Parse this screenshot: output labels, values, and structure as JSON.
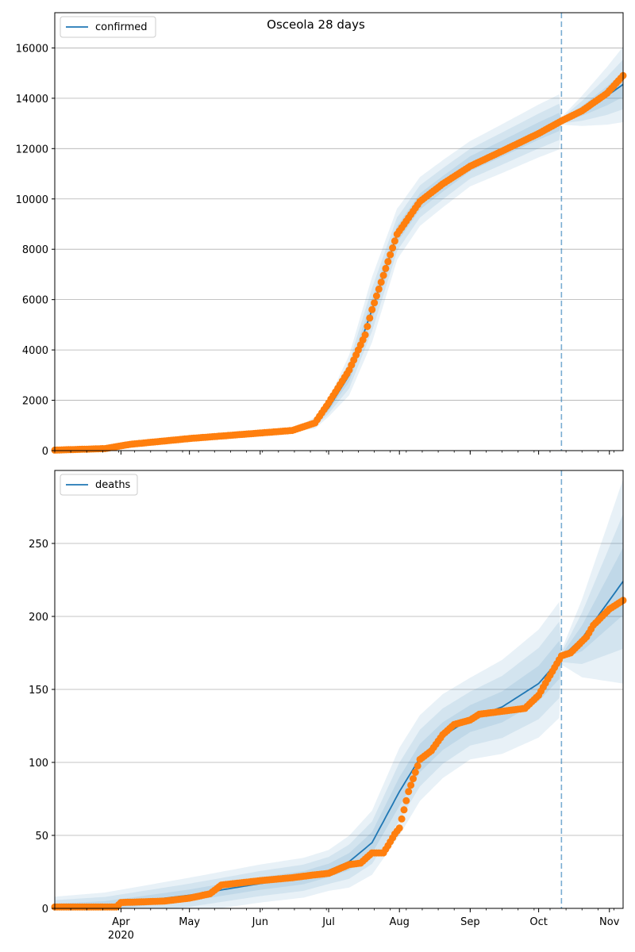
{
  "chart_data": [
    {
      "type": "line",
      "title": "Osceola 28 days",
      "xlabel": "",
      "ylabel": "",
      "legend": {
        "placement": "top-left",
        "entries": [
          "confirmed"
        ]
      },
      "series_name": "confirmed",
      "x_range": [
        "2020-03-03",
        "2020-11-07"
      ],
      "ylim": [
        0,
        17400
      ],
      "yticks": [
        0,
        2000,
        4000,
        6000,
        8000,
        10000,
        12000,
        14000,
        16000
      ],
      "grid": "horizontal",
      "forecast_start": "2020-10-11",
      "model_knots": [
        [
          "2020-03-03",
          20
        ],
        [
          "2020-03-20",
          80
        ],
        [
          "2020-04-05",
          300
        ],
        [
          "2020-05-01",
          500
        ],
        [
          "2020-06-01",
          700
        ],
        [
          "2020-06-15",
          800
        ],
        [
          "2020-06-25",
          1100
        ],
        [
          "2020-07-01",
          1700
        ],
        [
          "2020-07-10",
          3000
        ],
        [
          "2020-07-20",
          5600
        ],
        [
          "2020-07-31",
          8600
        ],
        [
          "2020-08-10",
          9900
        ],
        [
          "2020-08-20",
          10600
        ],
        [
          "2020-09-01",
          11400
        ],
        [
          "2020-09-15",
          12000
        ],
        [
          "2020-10-01",
          12700
        ],
        [
          "2020-10-11",
          13100
        ],
        [
          "2020-10-20",
          13500
        ],
        [
          "2020-10-31",
          14100
        ],
        [
          "2020-11-07",
          14550
        ]
      ],
      "observed_knots": [
        [
          "2020-03-03",
          20
        ],
        [
          "2020-03-25",
          80
        ],
        [
          "2020-04-05",
          250
        ],
        [
          "2020-05-01",
          480
        ],
        [
          "2020-06-01",
          700
        ],
        [
          "2020-06-15",
          800
        ],
        [
          "2020-06-25",
          1100
        ],
        [
          "2020-07-01",
          1900
        ],
        [
          "2020-07-10",
          3200
        ],
        [
          "2020-07-17",
          4600
        ],
        [
          "2020-07-20",
          5600
        ],
        [
          "2020-07-31",
          8600
        ],
        [
          "2020-08-10",
          9900
        ],
        [
          "2020-08-20",
          10600
        ],
        [
          "2020-09-01",
          11300
        ],
        [
          "2020-09-15",
          11900
        ],
        [
          "2020-10-01",
          12600
        ],
        [
          "2020-10-11",
          13100
        ],
        [
          "2020-10-20",
          13500
        ],
        [
          "2020-10-31",
          14200
        ],
        [
          "2020-11-07",
          14900
        ]
      ],
      "band_widths": [
        [
          "2020-03-03",
          0
        ],
        [
          "2020-06-15",
          30
        ],
        [
          "2020-07-01",
          350
        ],
        [
          "2020-07-20",
          1300
        ],
        [
          "2020-08-01",
          1000
        ],
        [
          "2020-09-01",
          900
        ],
        [
          "2020-10-11",
          1100
        ],
        [
          "2020-10-11",
          150
        ],
        [
          "2020-11-07",
          1500
        ]
      ]
    },
    {
      "type": "line",
      "title": "",
      "xlabel": "",
      "ylabel": "",
      "legend": {
        "placement": "top-left",
        "entries": [
          "deaths"
        ]
      },
      "series_name": "deaths",
      "x_range": [
        "2020-03-03",
        "2020-11-07"
      ],
      "ylim": [
        0,
        300
      ],
      "yticks": [
        0,
        50,
        100,
        150,
        200,
        250
      ],
      "grid": "horizontal",
      "forecast_start": "2020-10-11",
      "xtick_labels": [
        {
          "date": "2020-04-01",
          "label": "Apr",
          "sub": "2020"
        },
        {
          "date": "2020-05-01",
          "label": "May"
        },
        {
          "date": "2020-06-01",
          "label": "Jun"
        },
        {
          "date": "2020-07-01",
          "label": "Jul"
        },
        {
          "date": "2020-08-01",
          "label": "Aug"
        },
        {
          "date": "2020-09-01",
          "label": "Sep"
        },
        {
          "date": "2020-10-01",
          "label": "Oct"
        },
        {
          "date": "2020-11-01",
          "label": "Nov"
        }
      ],
      "model_knots": [
        [
          "2020-03-03",
          1
        ],
        [
          "2020-03-25",
          2
        ],
        [
          "2020-04-10",
          5
        ],
        [
          "2020-05-01",
          9
        ],
        [
          "2020-06-01",
          17
        ],
        [
          "2020-06-20",
          21
        ],
        [
          "2020-07-01",
          26
        ],
        [
          "2020-07-10",
          32
        ],
        [
          "2020-07-20",
          45
        ],
        [
          "2020-08-01",
          80
        ],
        [
          "2020-08-10",
          103
        ],
        [
          "2020-08-20",
          118
        ],
        [
          "2020-09-01",
          130
        ],
        [
          "2020-09-15",
          138
        ],
        [
          "2020-10-01",
          154
        ],
        [
          "2020-10-11",
          172
        ],
        [
          "2020-10-20",
          185
        ],
        [
          "2020-11-07",
          224
        ]
      ],
      "observed_knots": [
        [
          "2020-03-03",
          1
        ],
        [
          "2020-03-30",
          1
        ],
        [
          "2020-04-01",
          4
        ],
        [
          "2020-04-20",
          5
        ],
        [
          "2020-05-01",
          7
        ],
        [
          "2020-05-10",
          10
        ],
        [
          "2020-05-15",
          16
        ],
        [
          "2020-06-01",
          19
        ],
        [
          "2020-06-15",
          21
        ],
        [
          "2020-06-25",
          23
        ],
        [
          "2020-07-01",
          24
        ],
        [
          "2020-07-10",
          30
        ],
        [
          "2020-07-15",
          31
        ],
        [
          "2020-07-20",
          38
        ],
        [
          "2020-07-25",
          38
        ],
        [
          "2020-07-27",
          43
        ],
        [
          "2020-07-30",
          51
        ],
        [
          "2020-08-01",
          55
        ],
        [
          "2020-08-05",
          80
        ],
        [
          "2020-08-10",
          102
        ],
        [
          "2020-08-15",
          108
        ],
        [
          "2020-08-20",
          119
        ],
        [
          "2020-08-25",
          126
        ],
        [
          "2020-09-01",
          129
        ],
        [
          "2020-09-05",
          133
        ],
        [
          "2020-09-15",
          135
        ],
        [
          "2020-09-25",
          137
        ],
        [
          "2020-10-01",
          146
        ],
        [
          "2020-10-05",
          157
        ],
        [
          "2020-10-11",
          173
        ],
        [
          "2020-10-15",
          175
        ],
        [
          "2020-10-22",
          186
        ],
        [
          "2020-10-25",
          194
        ],
        [
          "2020-11-01",
          205
        ],
        [
          "2020-11-07",
          211
        ]
      ],
      "band_widths": [
        [
          "2020-03-03",
          7
        ],
        [
          "2020-05-01",
          12
        ],
        [
          "2020-07-01",
          14
        ],
        [
          "2020-07-20",
          22
        ],
        [
          "2020-08-01",
          30
        ],
        [
          "2020-09-01",
          28
        ],
        [
          "2020-10-11",
          40
        ],
        [
          "2020-10-11",
          5
        ],
        [
          "2020-11-07",
          70
        ]
      ]
    }
  ],
  "colors": {
    "model_line": "#1f77b4",
    "observed_points": "#ff7f0e",
    "band": "#1f77b4",
    "grid": "#b0b0b0",
    "axis": "#000000"
  }
}
